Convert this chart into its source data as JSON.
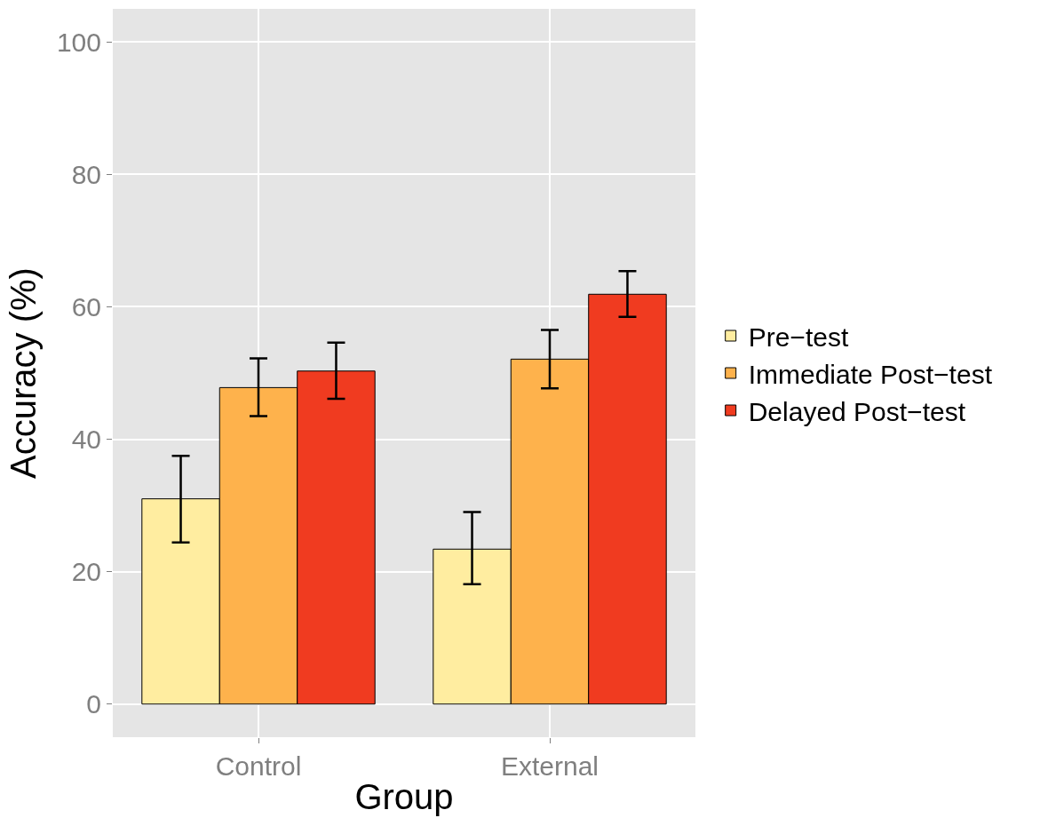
{
  "chart_data": {
    "type": "bar",
    "xlabel": "Group",
    "ylabel": "Accuracy (%)",
    "categories": [
      "Control",
      "External"
    ],
    "series": [
      {
        "name": "Pre−test",
        "color": "#ffeda0",
        "values": [
          31.0,
          23.4
        ],
        "errors": [
          [
            24.4,
            37.5
          ],
          [
            18.1,
            29.0
          ]
        ]
      },
      {
        "name": "Immediate Post−test",
        "color": "#feb24c",
        "values": [
          47.8,
          52.1
        ],
        "errors": [
          [
            43.5,
            52.2
          ],
          [
            47.7,
            56.5
          ]
        ]
      },
      {
        "name": "Delayed Post−test",
        "color": "#f03b20",
        "values": [
          50.3,
          61.9
        ],
        "errors": [
          [
            46.1,
            54.6
          ],
          [
            58.5,
            65.4
          ]
        ]
      }
    ],
    "ylim": [
      -5,
      105
    ],
    "yticks": [
      0,
      20,
      40,
      60,
      80,
      100
    ],
    "grid": true,
    "legend": "right"
  }
}
